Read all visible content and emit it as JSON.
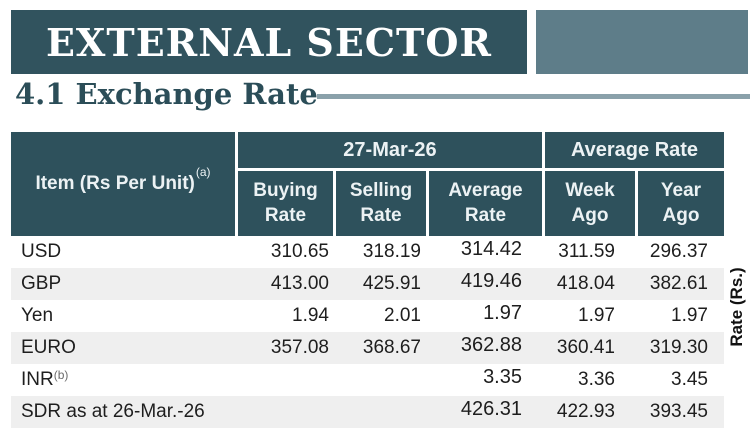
{
  "page": {
    "section_title": "EXTERNAL SECTOR",
    "subsection_title": "4.1 Exchange Rate"
  },
  "colors": {
    "banner_teal": "#31535e",
    "table_header_teal": "#2e515c",
    "accent_blue_gray": "#5e7d89",
    "rule_gray": "#8aa1aa",
    "row_stripe": "#efefef",
    "header_text": "#ecf2f4",
    "body_text": "#1e1e1e"
  },
  "table": {
    "item_header": "Item (Rs Per Unit)",
    "item_header_sup": "(a)",
    "date_group": "27-Mar-26",
    "average_group": "Average Rate",
    "sub_headers": [
      {
        "l1": "Buying",
        "l2": "Rate"
      },
      {
        "l1": "Selling",
        "l2": "Rate"
      },
      {
        "l1": "Average",
        "l2": "Rate"
      },
      {
        "l1": "Week",
        "l2": "Ago"
      },
      {
        "l1": "Year",
        "l2": "Ago"
      }
    ],
    "side_label": "Rate (Rs.)",
    "rows": [
      {
        "item": "USD",
        "sup": "",
        "buying": "310.65",
        "selling": "318.19",
        "average": "314.42",
        "week_ago": "311.59",
        "year_ago": "296.37"
      },
      {
        "item": "GBP",
        "sup": "",
        "buying": "413.00",
        "selling": "425.91",
        "average": "419.46",
        "week_ago": "418.04",
        "year_ago": "382.61"
      },
      {
        "item": "Yen",
        "sup": "",
        "buying": "1.94",
        "selling": "2.01",
        "average": "1.97",
        "week_ago": "1.97",
        "year_ago": "1.97"
      },
      {
        "item": "EURO",
        "sup": "",
        "buying": "357.08",
        "selling": "368.67",
        "average": "362.88",
        "week_ago": "360.41",
        "year_ago": "319.30"
      },
      {
        "item": "INR",
        "sup": "(b)",
        "buying": "",
        "selling": "",
        "average": "3.35",
        "week_ago": "3.36",
        "year_ago": "3.45"
      },
      {
        "item": "SDR as at 26-Mar.-26",
        "sup": "",
        "buying": "",
        "selling": "",
        "average": "426.31",
        "week_ago": "422.93",
        "year_ago": "393.45"
      }
    ]
  }
}
